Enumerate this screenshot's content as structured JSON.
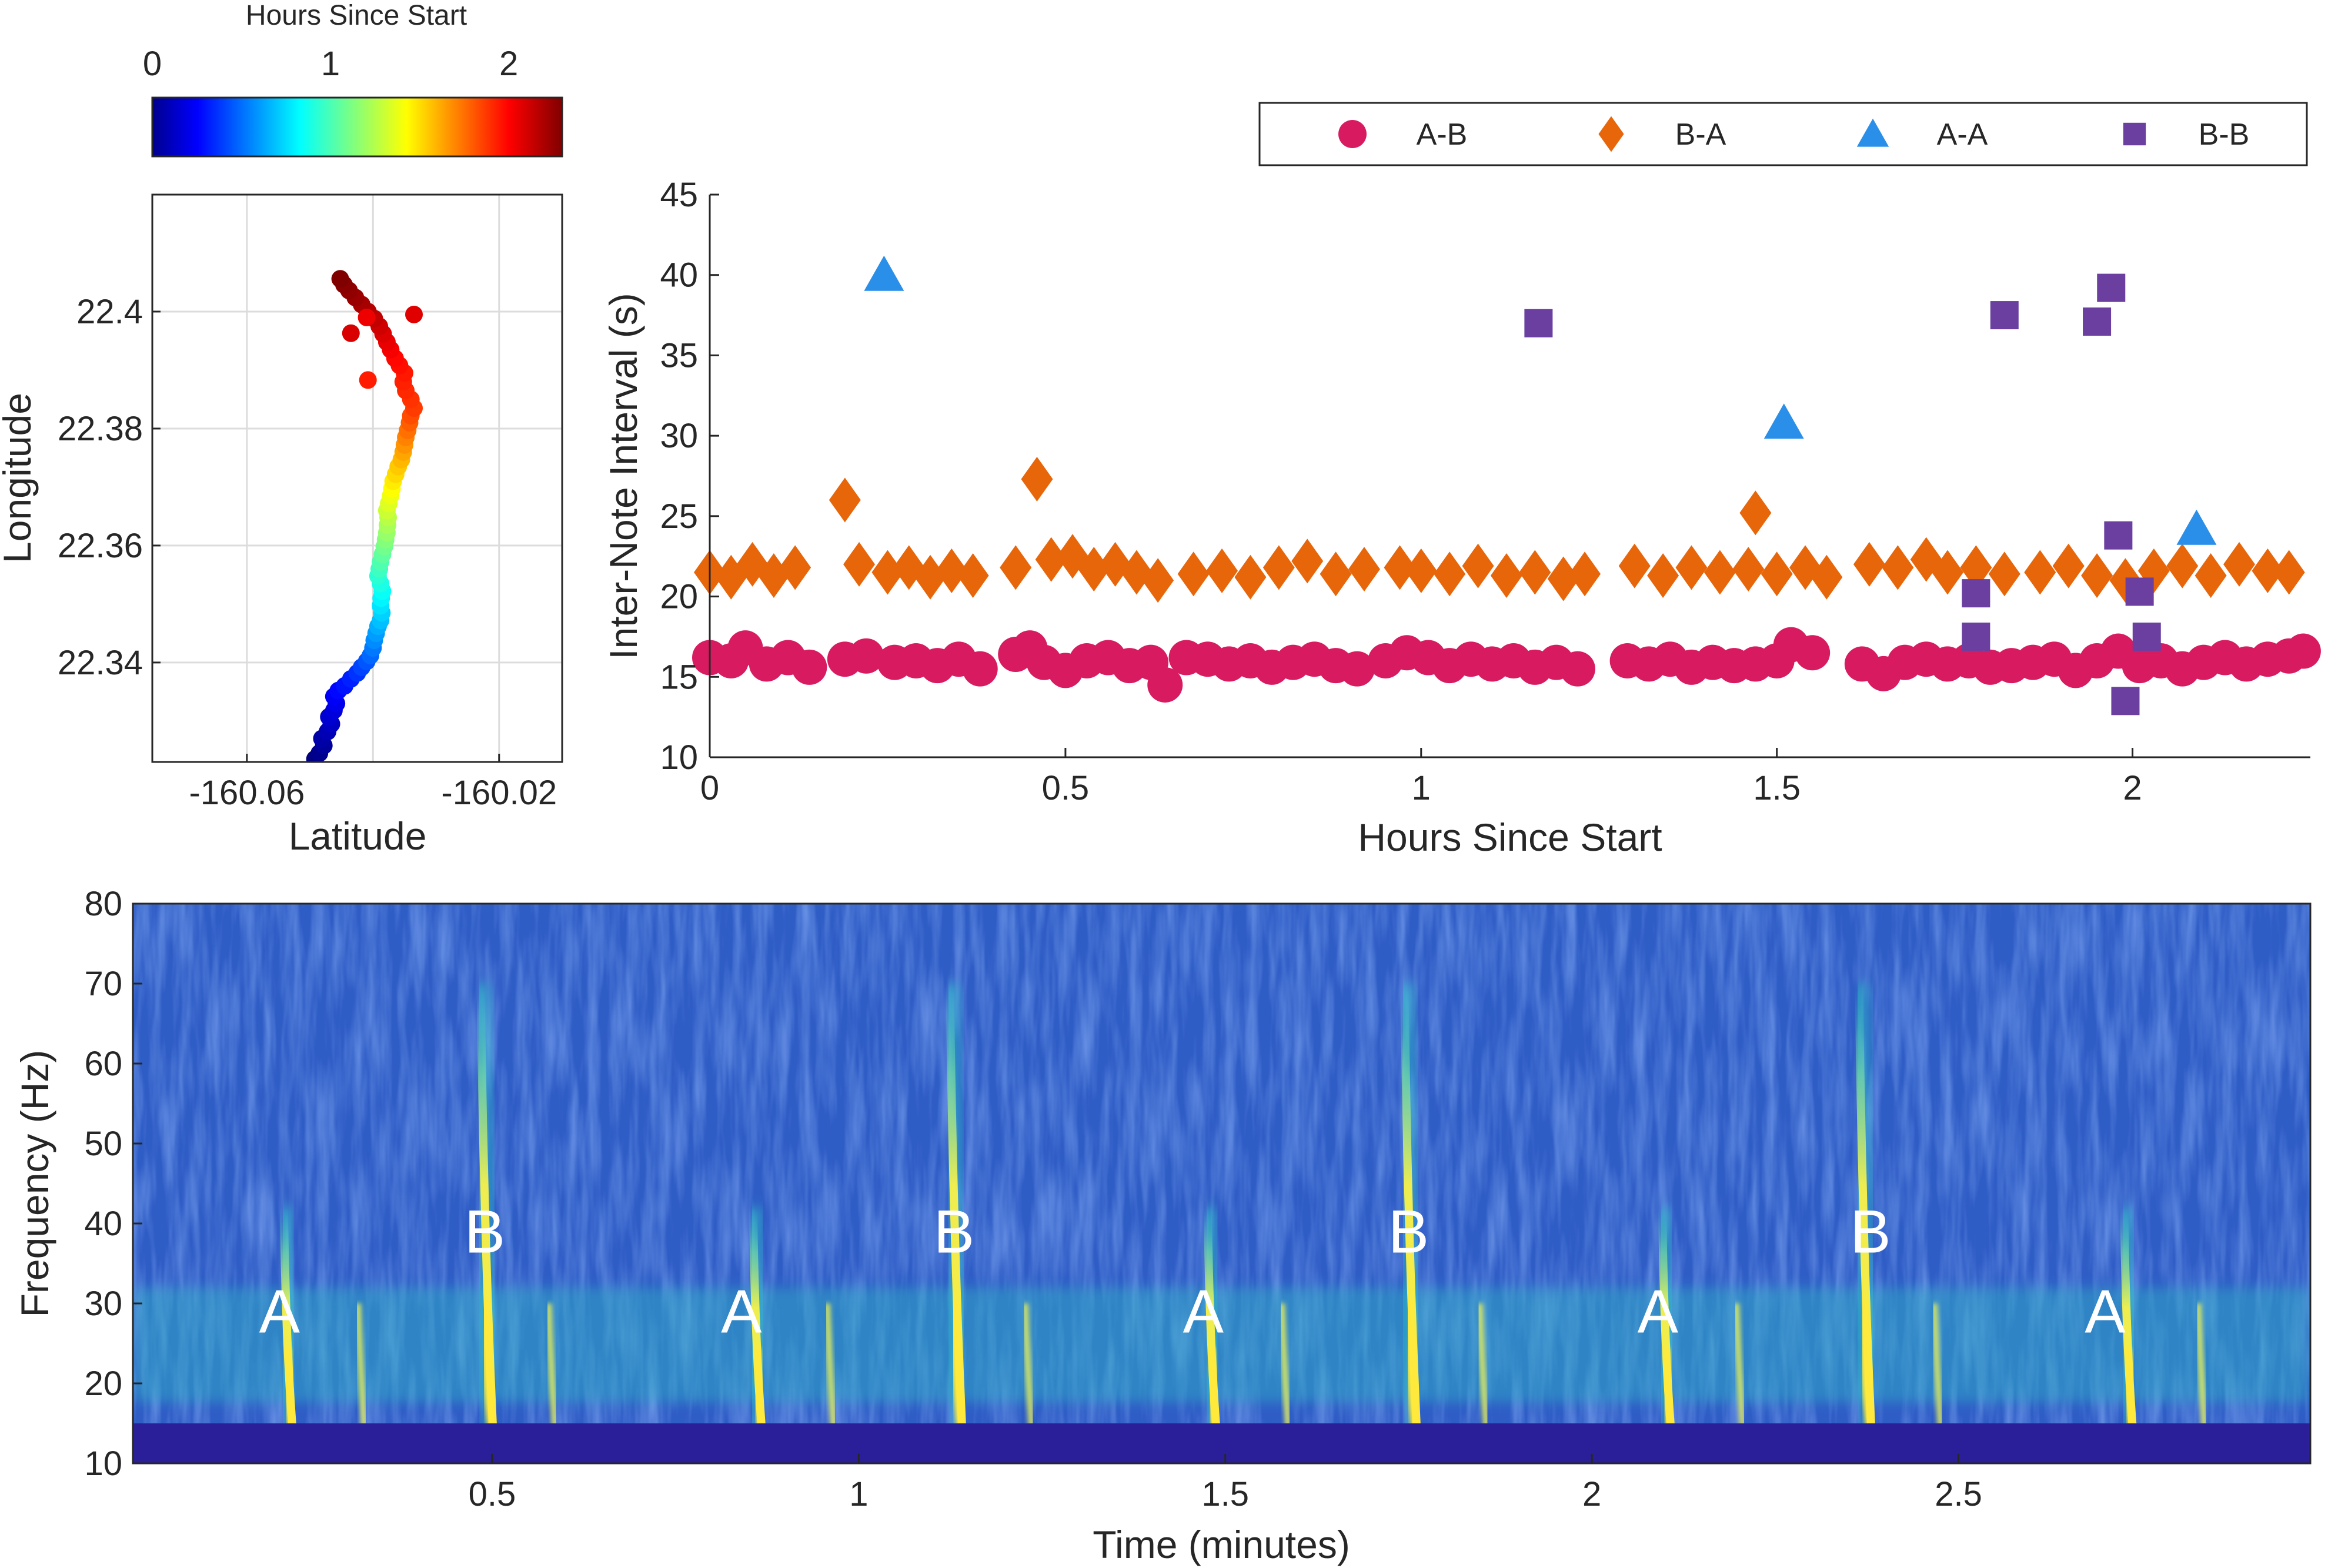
{
  "colors": {
    "ab": "#d81b60",
    "ba": "#e8660a",
    "aa": "#2a8fe8",
    "bb": "#6a3fa0",
    "axis": "#262626",
    "grid": "#dcdcdc",
    "spec_bg": "#2f5dc6",
    "spec_floor": "#2b1f99",
    "spec_call": "#ffe93a"
  },
  "chart_data": [
    {
      "id": "track",
      "type": "scatter",
      "xlabel": "Latitude",
      "ylabel": "Longitude",
      "xticks": [
        -160.06,
        -160.02
      ],
      "yticks": [
        22.34,
        22.36,
        22.38,
        22.4
      ],
      "xlim": [
        -160.075,
        -160.01
      ],
      "ylim": [
        22.323,
        22.42
      ],
      "grid": true,
      "colorbar": {
        "label": "Hours Since Start",
        "ticks": [
          0,
          1,
          2
        ],
        "range": [
          0,
          2.3
        ],
        "colormap": "jet"
      },
      "points": [
        [
          -160.0492,
          22.3235,
          0.0
        ],
        [
          -160.0485,
          22.3245,
          0.03
        ],
        [
          -160.0478,
          22.3258,
          0.06
        ],
        [
          -160.0481,
          22.327,
          0.09
        ],
        [
          -160.0472,
          22.3282,
          0.12
        ],
        [
          -160.0466,
          22.3295,
          0.15
        ],
        [
          -160.047,
          22.3307,
          0.18
        ],
        [
          -160.0462,
          22.3318,
          0.21
        ],
        [
          -160.0458,
          22.333,
          0.24
        ],
        [
          -160.0462,
          22.3342,
          0.27
        ],
        [
          -160.0455,
          22.3352,
          0.3
        ],
        [
          -160.0445,
          22.336,
          0.33
        ],
        [
          -160.0435,
          22.3372,
          0.36
        ],
        [
          -160.0425,
          22.3382,
          0.4
        ],
        [
          -160.0418,
          22.3392,
          0.44
        ],
        [
          -160.041,
          22.3402,
          0.48
        ],
        [
          -160.0404,
          22.3412,
          0.52
        ],
        [
          -160.04,
          22.3425,
          0.56
        ],
        [
          -160.0398,
          22.3438,
          0.6
        ],
        [
          -160.0395,
          22.345,
          0.64
        ],
        [
          -160.0392,
          22.3462,
          0.68
        ],
        [
          -160.0388,
          22.3472,
          0.72
        ],
        [
          -160.0386,
          22.3485,
          0.76
        ],
        [
          -160.0388,
          22.3497,
          0.8
        ],
        [
          -160.0387,
          22.351,
          0.84
        ],
        [
          -160.0385,
          22.3522,
          0.88
        ],
        [
          -160.0388,
          22.3535,
          0.92
        ],
        [
          -160.0392,
          22.3548,
          0.96
        ],
        [
          -160.039,
          22.356,
          1.0
        ],
        [
          -160.0388,
          22.3572,
          1.04
        ],
        [
          -160.0385,
          22.3585,
          1.08
        ],
        [
          -160.0382,
          22.3598,
          1.12
        ],
        [
          -160.038,
          22.361,
          1.16
        ],
        [
          -160.0378,
          22.3622,
          1.2
        ],
        [
          -160.0377,
          22.3635,
          1.24
        ],
        [
          -160.0376,
          22.3648,
          1.28
        ],
        [
          -160.0378,
          22.366,
          1.32
        ],
        [
          -160.0375,
          22.3672,
          1.36
        ],
        [
          -160.0372,
          22.3685,
          1.4
        ],
        [
          -160.037,
          22.3697,
          1.44
        ],
        [
          -160.0368,
          22.371,
          1.48
        ],
        [
          -160.0364,
          22.3722,
          1.52
        ],
        [
          -160.036,
          22.3735,
          1.56
        ],
        [
          -160.0355,
          22.3747,
          1.6
        ],
        [
          -160.0352,
          22.376,
          1.64
        ],
        [
          -160.035,
          22.3772,
          1.68
        ],
        [
          -160.0348,
          22.3785,
          1.72
        ],
        [
          -160.0345,
          22.3797,
          1.76
        ],
        [
          -160.0342,
          22.381,
          1.8
        ],
        [
          -160.034,
          22.3822,
          1.84
        ],
        [
          -160.0335,
          22.3835,
          1.88
        ],
        [
          -160.034,
          22.385,
          1.9
        ],
        [
          -160.0348,
          22.3865,
          1.92
        ],
        [
          -160.0352,
          22.388,
          1.94
        ],
        [
          -160.035,
          22.3895,
          1.96
        ],
        [
          -160.0358,
          22.3908,
          1.98
        ],
        [
          -160.0365,
          22.392,
          2.0
        ],
        [
          -160.0372,
          22.3935,
          2.03
        ],
        [
          -160.0378,
          22.3948,
          2.06
        ],
        [
          -160.0384,
          22.3962,
          2.09
        ],
        [
          -160.039,
          22.3975,
          2.12
        ],
        [
          -160.0398,
          22.3988,
          2.15
        ],
        [
          -160.0408,
          22.4,
          2.18
        ],
        [
          -160.0418,
          22.4012,
          2.21
        ],
        [
          -160.0428,
          22.4024,
          2.24
        ],
        [
          -160.0438,
          22.4036,
          2.26
        ],
        [
          -160.0446,
          22.4046,
          2.28
        ],
        [
          -160.0452,
          22.4056,
          2.3
        ],
        [
          -160.0408,
          22.3883,
          1.95
        ],
        [
          -160.0435,
          22.3963,
          2.1
        ],
        [
          -160.041,
          22.399,
          2.05
        ],
        [
          -160.0335,
          22.3995,
          2.08
        ]
      ]
    },
    {
      "id": "intervals",
      "type": "scatter",
      "xlabel": "Hours Since Start",
      "ylabel": "Inter-Note Interval (s)",
      "xlim": [
        0,
        2.25
      ],
      "ylim": [
        10,
        45
      ],
      "xticks": [
        0,
        0.5,
        1,
        1.5,
        2
      ],
      "yticks": [
        10,
        15,
        20,
        25,
        30,
        35,
        40,
        45
      ],
      "legend_position": "top",
      "series": [
        {
          "name": "A-B",
          "marker": "circle",
          "points": [
            [
              0.0,
              16.2
            ],
            [
              0.03,
              16.0
            ],
            [
              0.05,
              16.8
            ],
            [
              0.08,
              15.8
            ],
            [
              0.11,
              16.2
            ],
            [
              0.14,
              15.6
            ],
            [
              0.19,
              16.1
            ],
            [
              0.22,
              16.3
            ],
            [
              0.26,
              15.9
            ],
            [
              0.29,
              16.0
            ],
            [
              0.32,
              15.7
            ],
            [
              0.35,
              16.1
            ],
            [
              0.38,
              15.5
            ],
            [
              0.43,
              16.4
            ],
            [
              0.45,
              16.8
            ],
            [
              0.47,
              15.9
            ],
            [
              0.5,
              15.4
            ],
            [
              0.53,
              16.0
            ],
            [
              0.56,
              16.2
            ],
            [
              0.59,
              15.7
            ],
            [
              0.62,
              15.9
            ],
            [
              0.64,
              14.5
            ],
            [
              0.67,
              16.2
            ],
            [
              0.7,
              16.1
            ],
            [
              0.73,
              15.8
            ],
            [
              0.76,
              16.0
            ],
            [
              0.79,
              15.6
            ],
            [
              0.82,
              15.9
            ],
            [
              0.85,
              16.1
            ],
            [
              0.88,
              15.7
            ],
            [
              0.91,
              15.5
            ],
            [
              0.95,
              16.0
            ],
            [
              0.98,
              16.5
            ],
            [
              1.01,
              16.2
            ],
            [
              1.04,
              15.7
            ],
            [
              1.07,
              16.1
            ],
            [
              1.1,
              15.8
            ],
            [
              1.13,
              16.0
            ],
            [
              1.16,
              15.6
            ],
            [
              1.19,
              15.9
            ],
            [
              1.22,
              15.5
            ],
            [
              1.29,
              16.0
            ],
            [
              1.32,
              15.8
            ],
            [
              1.35,
              16.1
            ],
            [
              1.38,
              15.6
            ],
            [
              1.41,
              15.9
            ],
            [
              1.44,
              15.7
            ],
            [
              1.47,
              15.8
            ],
            [
              1.5,
              16.0
            ],
            [
              1.52,
              17.0
            ],
            [
              1.55,
              16.5
            ],
            [
              1.62,
              15.8
            ],
            [
              1.65,
              15.2
            ],
            [
              1.68,
              15.9
            ],
            [
              1.71,
              16.1
            ],
            [
              1.74,
              15.8
            ],
            [
              1.77,
              16.0
            ],
            [
              1.8,
              15.6
            ],
            [
              1.83,
              15.7
            ],
            [
              1.86,
              15.9
            ],
            [
              1.89,
              16.1
            ],
            [
              1.92,
              15.4
            ],
            [
              1.95,
              16.0
            ],
            [
              1.98,
              16.6
            ],
            [
              2.01,
              15.7
            ],
            [
              2.04,
              16.0
            ],
            [
              2.07,
              15.5
            ],
            [
              2.1,
              15.9
            ],
            [
              2.13,
              16.2
            ],
            [
              2.16,
              15.8
            ],
            [
              2.19,
              16.1
            ],
            [
              2.22,
              16.3
            ],
            [
              2.24,
              16.6
            ]
          ]
        },
        {
          "name": "B-A",
          "marker": "diamond",
          "points": [
            [
              0.0,
              21.5
            ],
            [
              0.03,
              21.2
            ],
            [
              0.06,
              22.0
            ],
            [
              0.09,
              21.3
            ],
            [
              0.12,
              21.8
            ],
            [
              0.19,
              26.0
            ],
            [
              0.21,
              22.0
            ],
            [
              0.25,
              21.5
            ],
            [
              0.28,
              21.8
            ],
            [
              0.31,
              21.2
            ],
            [
              0.34,
              21.6
            ],
            [
              0.37,
              21.3
            ],
            [
              0.43,
              21.8
            ],
            [
              0.46,
              27.3
            ],
            [
              0.48,
              22.3
            ],
            [
              0.51,
              22.5
            ],
            [
              0.54,
              21.7
            ],
            [
              0.57,
              22.0
            ],
            [
              0.6,
              21.5
            ],
            [
              0.63,
              21.0
            ],
            [
              0.68,
              21.4
            ],
            [
              0.72,
              21.6
            ],
            [
              0.76,
              21.2
            ],
            [
              0.8,
              21.8
            ],
            [
              0.84,
              22.2
            ],
            [
              0.88,
              21.4
            ],
            [
              0.92,
              21.7
            ],
            [
              0.97,
              21.8
            ],
            [
              1.0,
              21.6
            ],
            [
              1.04,
              21.4
            ],
            [
              1.08,
              21.9
            ],
            [
              1.12,
              21.3
            ],
            [
              1.16,
              21.5
            ],
            [
              1.2,
              21.1
            ],
            [
              1.23,
              21.4
            ],
            [
              1.3,
              21.9
            ],
            [
              1.34,
              21.3
            ],
            [
              1.38,
              21.8
            ],
            [
              1.42,
              21.5
            ],
            [
              1.46,
              21.7
            ],
            [
              1.47,
              25.2
            ],
            [
              1.5,
              21.4
            ],
            [
              1.54,
              21.8
            ],
            [
              1.57,
              21.2
            ],
            [
              1.63,
              22.0
            ],
            [
              1.67,
              21.8
            ],
            [
              1.71,
              22.3
            ],
            [
              1.74,
              21.5
            ],
            [
              1.78,
              21.8
            ],
            [
              1.82,
              21.4
            ],
            [
              1.87,
              21.5
            ],
            [
              1.91,
              21.9
            ],
            [
              1.95,
              21.3
            ],
            [
              1.99,
              21.0
            ],
            [
              2.03,
              21.6
            ],
            [
              2.07,
              21.9
            ],
            [
              2.11,
              21.3
            ],
            [
              2.15,
              22.0
            ],
            [
              2.19,
              21.6
            ],
            [
              2.22,
              21.5
            ]
          ]
        },
        {
          "name": "A-A",
          "marker": "triangle",
          "points": [
            [
              0.245,
              40.0
            ],
            [
              1.51,
              30.8
            ],
            [
              2.09,
              24.2
            ]
          ]
        },
        {
          "name": "B-B",
          "marker": "square",
          "points": [
            [
              1.165,
              37.0
            ],
            [
              1.78,
              20.2
            ],
            [
              1.78,
              17.5
            ],
            [
              1.82,
              37.5
            ],
            [
              1.95,
              37.1
            ],
            [
              1.97,
              39.2
            ],
            [
              1.98,
              23.8
            ],
            [
              1.99,
              13.5
            ],
            [
              2.01,
              20.3
            ],
            [
              2.02,
              17.5
            ]
          ]
        }
      ]
    },
    {
      "id": "spectrogram",
      "type": "heatmap",
      "xlabel": "Time (minutes)",
      "ylabel": "Frequency (Hz)",
      "xlim": [
        0.01,
        2.98
      ],
      "ylim": [
        10,
        80
      ],
      "xticks": [
        0.5,
        1,
        1.5,
        2,
        2.5
      ],
      "yticks": [
        10,
        20,
        30,
        40,
        50,
        60,
        70,
        80
      ],
      "calls": [
        {
          "label": "A",
          "time": 0.22,
          "ftop": 42,
          "strength": 0.9
        },
        {
          "label": "B",
          "time": 0.49,
          "ftop": 70,
          "strength": 1.0
        },
        {
          "label": "A",
          "time": 0.86,
          "ftop": 42,
          "strength": 0.9
        },
        {
          "label": "B",
          "time": 1.13,
          "ftop": 70,
          "strength": 1.0
        },
        {
          "label": "A",
          "time": 1.48,
          "ftop": 42,
          "strength": 0.9
        },
        {
          "label": "B",
          "time": 1.75,
          "ftop": 70,
          "strength": 1.0
        },
        {
          "label": "A",
          "time": 2.1,
          "ftop": 42,
          "strength": 0.9
        },
        {
          "label": "B",
          "time": 2.37,
          "ftop": 70,
          "strength": 1.0
        },
        {
          "label": "A",
          "time": 2.73,
          "ftop": 42,
          "strength": 0.9
        }
      ],
      "echoes": [
        0.32,
        0.58,
        0.96,
        1.23,
        1.58,
        1.85,
        2.2,
        2.47,
        2.83
      ],
      "labels": [
        {
          "text": "A",
          "time": 0.21,
          "freq": 29
        },
        {
          "text": "B",
          "time": 0.49,
          "freq": 39
        },
        {
          "text": "A",
          "time": 0.84,
          "freq": 29
        },
        {
          "text": "B",
          "time": 1.13,
          "freq": 39
        },
        {
          "text": "A",
          "time": 1.47,
          "freq": 29
        },
        {
          "text": "B",
          "time": 1.75,
          "freq": 39
        },
        {
          "text": "A",
          "time": 2.09,
          "freq": 29
        },
        {
          "text": "B",
          "time": 2.38,
          "freq": 39
        },
        {
          "text": "A",
          "time": 2.7,
          "freq": 29
        }
      ]
    }
  ]
}
